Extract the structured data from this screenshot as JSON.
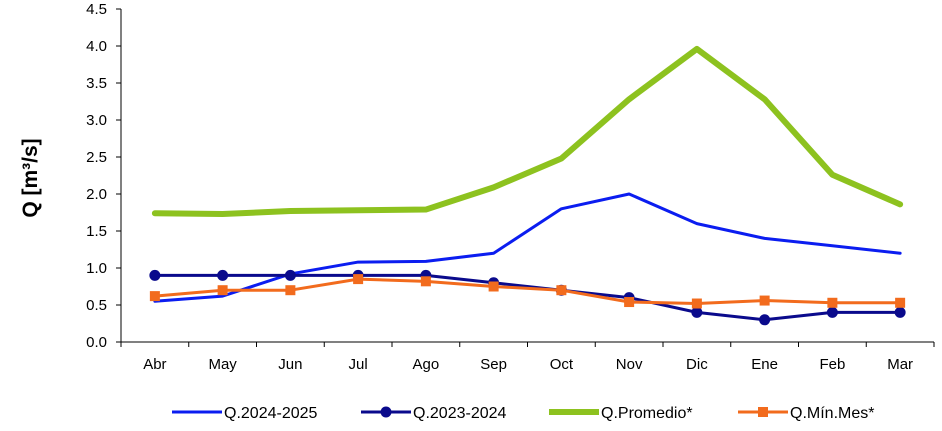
{
  "chart_data": {
    "type": "line",
    "ylabel": "Q [m³/s]",
    "xlabel": "",
    "ylim": [
      0,
      4.5
    ],
    "yticks": [
      "0.0",
      "0.5",
      "1.0",
      "1.5",
      "2.0",
      "2.5",
      "3.0",
      "3.5",
      "4.0",
      "4.5"
    ],
    "categories": [
      "Abr",
      "May",
      "Jun",
      "Jul",
      "Ago",
      "Sep",
      "Oct",
      "Nov",
      "Dic",
      "Ene",
      "Feb",
      "Mar"
    ],
    "grid": false,
    "legend_position": "bottom",
    "series": [
      {
        "name": "Q.2024-2025",
        "color": "#0b1df0",
        "marker": "none",
        "values": [
          0.55,
          0.62,
          0.92,
          1.08,
          1.09,
          1.2,
          1.8,
          2.0,
          1.6,
          1.4,
          1.3,
          1.2
        ]
      },
      {
        "name": "Q.2023-2024",
        "color": "#0a0a8c",
        "marker": "circle",
        "values": [
          0.9,
          0.9,
          0.9,
          0.9,
          0.9,
          0.8,
          0.7,
          0.6,
          0.4,
          0.3,
          0.4,
          0.4
        ]
      },
      {
        "name": "Q.Promedio*",
        "color": "#8dc21f",
        "marker": "none",
        "values": [
          1.74,
          1.73,
          1.77,
          1.78,
          1.79,
          2.09,
          2.48,
          3.28,
          3.96,
          3.28,
          2.26,
          1.86
        ]
      },
      {
        "name": "Q.Mín.Mes*",
        "color": "#f26b1d",
        "marker": "square",
        "values": [
          0.62,
          0.7,
          0.7,
          0.85,
          0.82,
          0.75,
          0.7,
          0.54,
          0.52,
          0.56,
          0.53,
          0.53
        ]
      }
    ]
  }
}
